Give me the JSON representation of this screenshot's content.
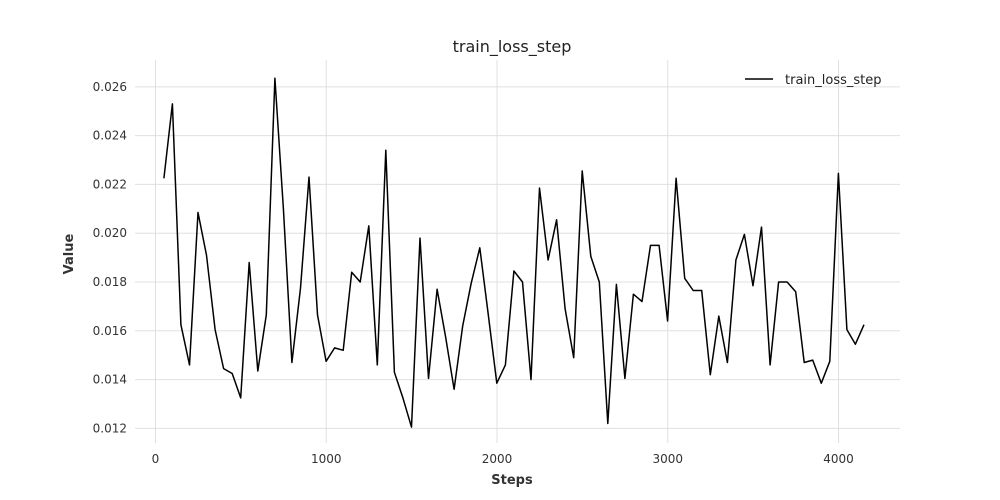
{
  "chart_data": {
    "type": "line",
    "title": "train_loss_step",
    "xlabel": "Steps",
    "ylabel": "Value",
    "xlim": [
      -120,
      4360
    ],
    "ylim": [
      0.0114,
      0.0271
    ],
    "xticks": [
      0,
      1000,
      2000,
      3000,
      4000
    ],
    "yticks": [
      0.012,
      0.014,
      0.016,
      0.018,
      0.02,
      0.022,
      0.024,
      0.026
    ],
    "xtick_labels": [
      "0",
      "1000",
      "2000",
      "3000",
      "4000"
    ],
    "ytick_labels": [
      "0.012",
      "0.014",
      "0.016",
      "0.018",
      "0.020",
      "0.022",
      "0.024",
      "0.026"
    ],
    "grid": true,
    "legend_position": "top-right",
    "series": [
      {
        "name": "train_loss_step",
        "color": "#000000",
        "x": [
          49,
          99,
          149,
          199,
          249,
          299,
          349,
          399,
          449,
          499,
          549,
          599,
          649,
          699,
          749,
          799,
          849,
          899,
          949,
          999,
          1049,
          1099,
          1149,
          1199,
          1249,
          1299,
          1349,
          1399,
          1449,
          1499,
          1549,
          1599,
          1649,
          1699,
          1749,
          1799,
          1849,
          1899,
          1949,
          1999,
          2049,
          2099,
          2149,
          2199,
          2249,
          2299,
          2349,
          2399,
          2449,
          2499,
          2549,
          2599,
          2649,
          2699,
          2749,
          2799,
          2849,
          2899,
          2949,
          2999,
          3049,
          3099,
          3149,
          3199,
          3249,
          3299,
          3349,
          3399,
          3449,
          3499,
          3549,
          3599,
          3649,
          3699,
          3749,
          3799,
          3849,
          3899,
          3949,
          3999,
          4049,
          4099,
          4149
        ],
        "y": [
          0.02225,
          0.0253,
          0.01625,
          0.0146,
          0.02085,
          0.0191,
          0.01605,
          0.01445,
          0.01425,
          0.01325,
          0.0188,
          0.01435,
          0.01665,
          0.02635,
          0.021,
          0.0147,
          0.01775,
          0.0223,
          0.01665,
          0.01475,
          0.0153,
          0.0152,
          0.0184,
          0.018,
          0.0203,
          0.0146,
          0.0234,
          0.0143,
          0.01325,
          0.01205,
          0.0198,
          0.01405,
          0.0177,
          0.01575,
          0.0136,
          0.0162,
          0.01795,
          0.0194,
          0.01665,
          0.01385,
          0.0146,
          0.01845,
          0.018,
          0.014,
          0.02185,
          0.0189,
          0.02055,
          0.0169,
          0.0149,
          0.02255,
          0.01905,
          0.018,
          0.0122,
          0.0179,
          0.01405,
          0.0175,
          0.0172,
          0.0195,
          0.0195,
          0.0164,
          0.02225,
          0.01815,
          0.01765,
          0.01765,
          0.0142,
          0.0166,
          0.0147,
          0.0189,
          0.01995,
          0.01785,
          0.02025,
          0.0146,
          0.018,
          0.018,
          0.0176,
          0.0147,
          0.0148,
          0.01385,
          0.01475,
          0.02245,
          0.01605,
          0.01545,
          0.01625
        ]
      }
    ]
  }
}
